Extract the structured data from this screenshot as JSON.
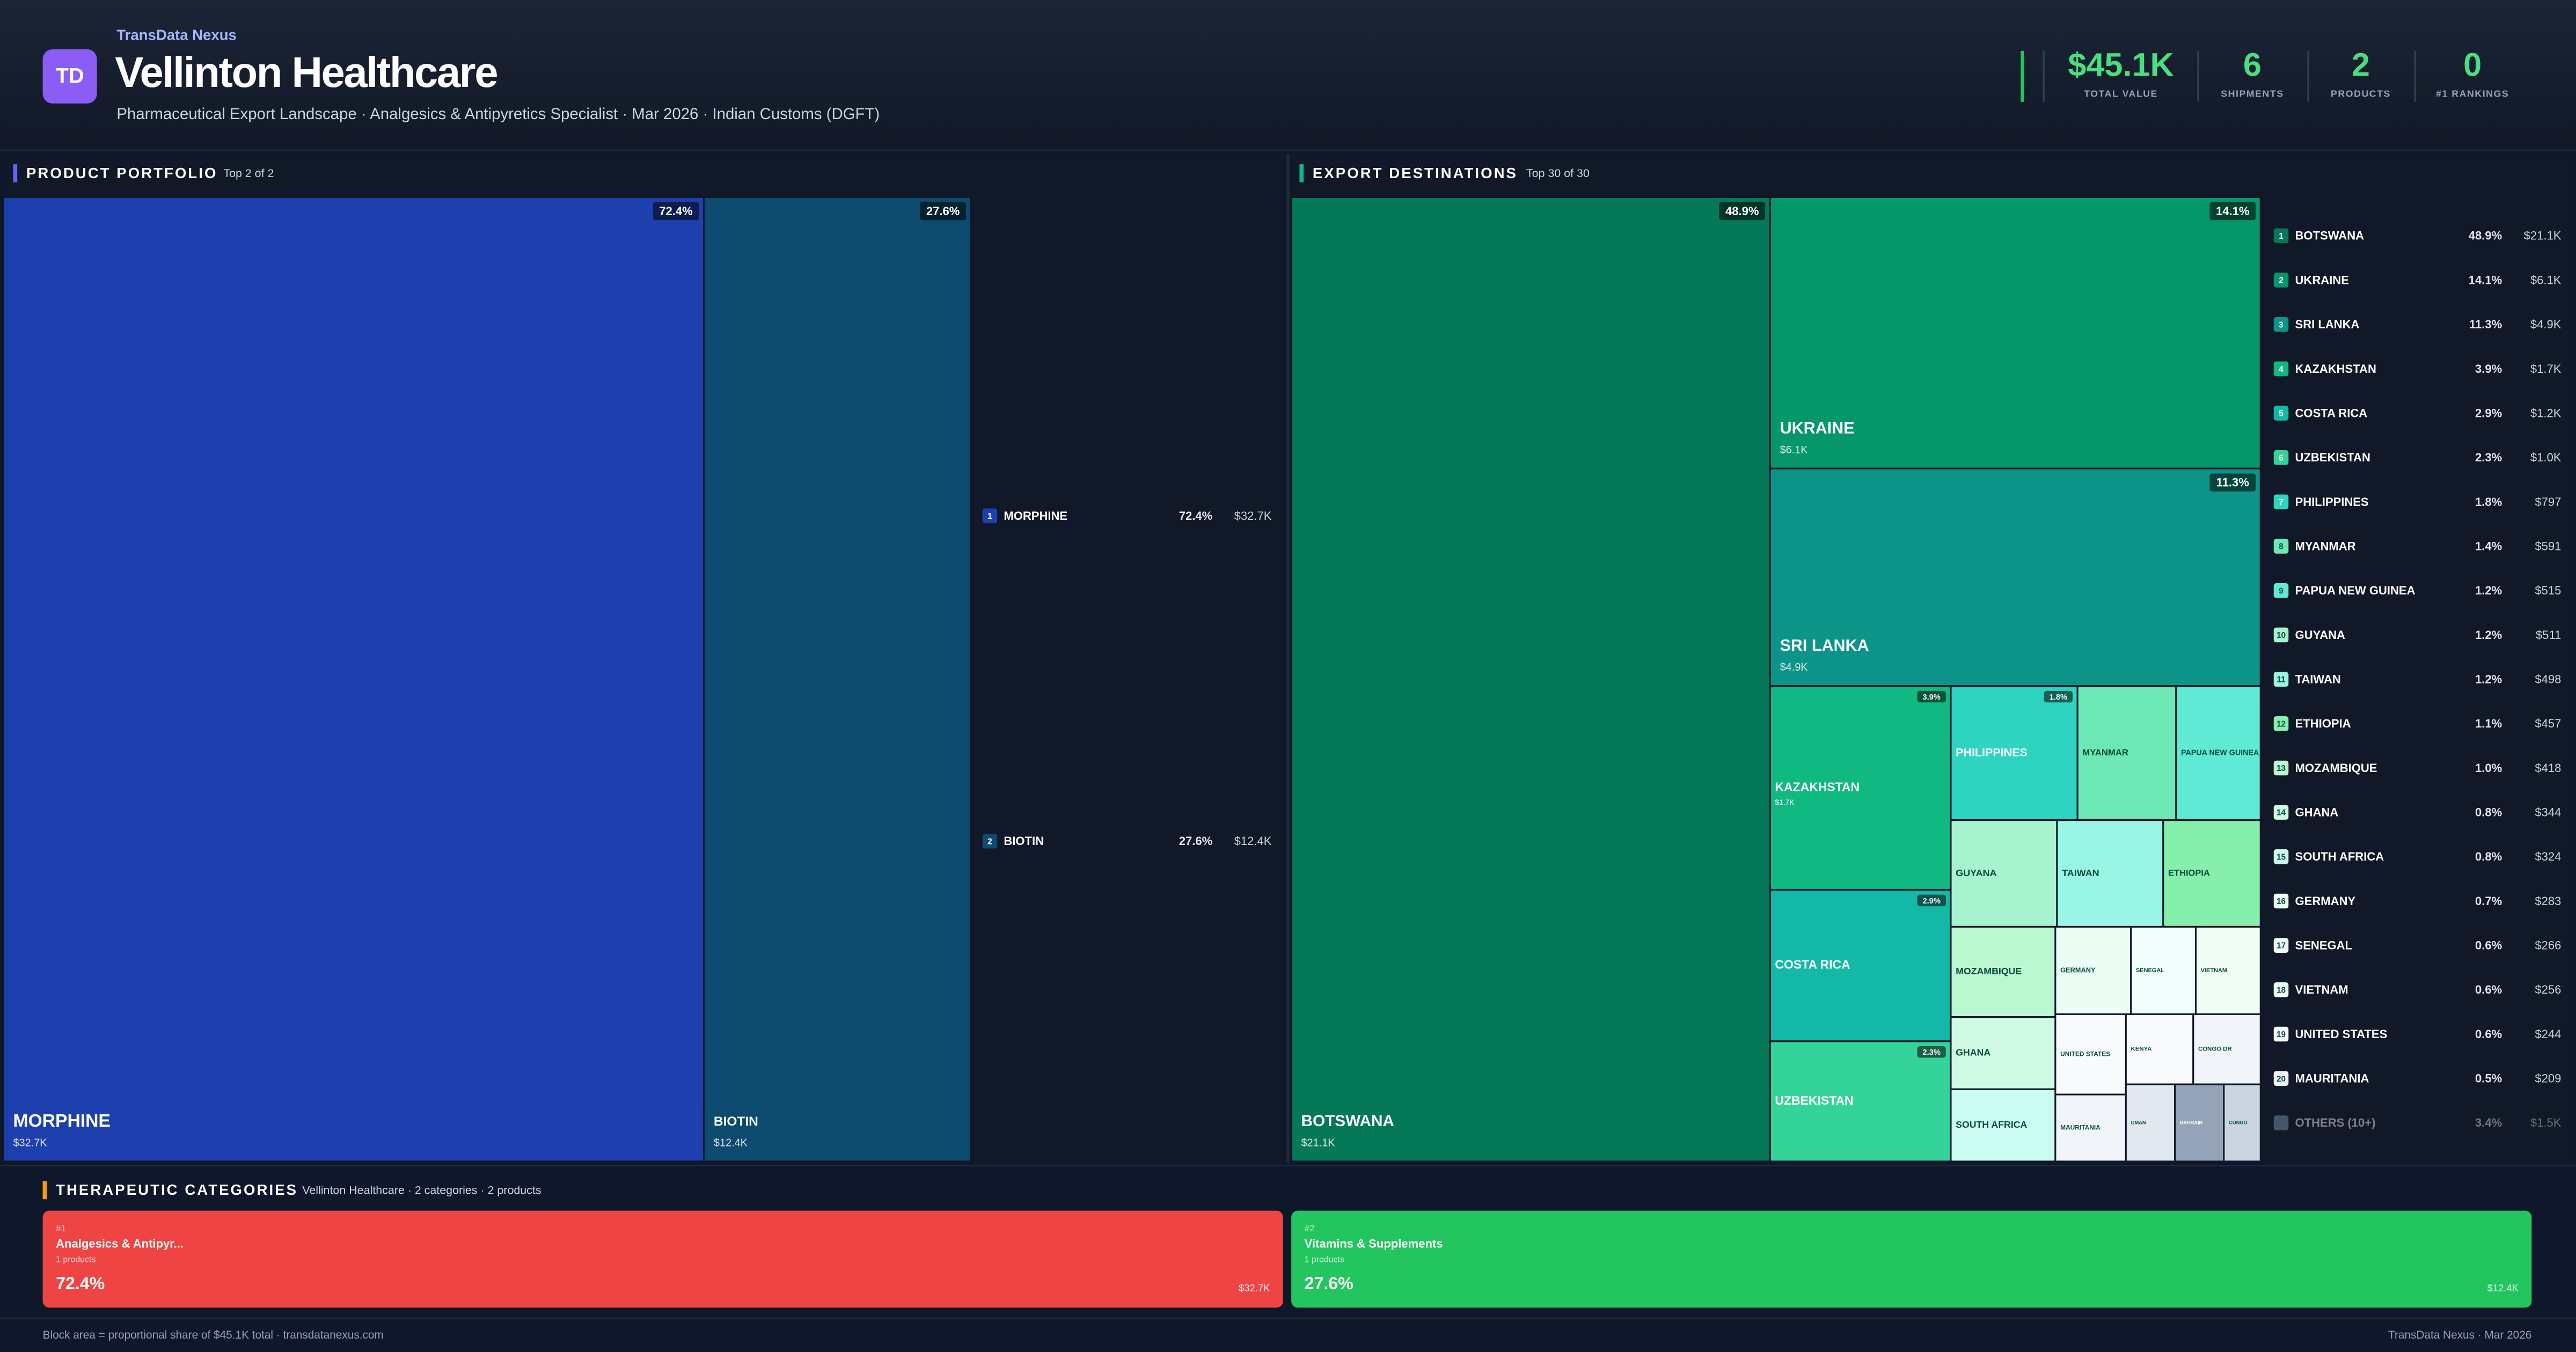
{
  "header": {
    "brand": "TransData Nexus",
    "logo": "TD",
    "title": "Vellinton Healthcare",
    "subtitle": "Pharmaceutical Export Landscape · Analgesics & Antipyretics Specialist · Mar 2026 · Indian Customs (DGFT)"
  },
  "kpis": [
    {
      "value": "$45.1K",
      "label": "TOTAL VALUE"
    },
    {
      "value": 6,
      "label": "SHIPMENTS"
    },
    {
      "value": 2,
      "label": "PRODUCTS"
    },
    {
      "value": 0,
      "label": "#1 RANKINGS"
    }
  ],
  "portfolio": {
    "title": "PRODUCT PORTFOLIO",
    "subtitle": "Top 2 of 2",
    "items": [
      {
        "rank": 1,
        "name": "MORPHINE",
        "share": 72.4,
        "share_label": "72.4%",
        "value_label": "$32.7K",
        "color": "#1e40af"
      },
      {
        "rank": 2,
        "name": "BIOTIN",
        "share": 27.6,
        "share_label": "27.6%",
        "value_label": "$12.4K",
        "color": "#0c4a6e"
      }
    ]
  },
  "destinations": {
    "title": "EXPORT DESTINATIONS",
    "subtitle": "Top 30 of 30",
    "items": [
      {
        "rank": 1,
        "name": "BOTSWANA",
        "share": 48.9,
        "share_label": "48.9%",
        "value_label": "$21.1K",
        "color": "#047857"
      },
      {
        "rank": 2,
        "name": "UKRAINE",
        "share": 14.1,
        "share_label": "14.1%",
        "value_label": "$6.1K",
        "color": "#059669"
      },
      {
        "rank": 3,
        "name": "SRI LANKA",
        "share": 11.3,
        "share_label": "11.3%",
        "value_label": "$4.9K",
        "color": "#0d9488"
      },
      {
        "rank": 4,
        "name": "KAZAKHSTAN",
        "share": 3.9,
        "share_label": "3.9%",
        "value_label": "$1.7K",
        "color": "#10b981"
      },
      {
        "rank": 5,
        "name": "COSTA RICA",
        "share": 2.9,
        "share_label": "2.9%",
        "value_label": "$1.2K",
        "color": "#14b8a6"
      },
      {
        "rank": 6,
        "name": "UZBEKISTAN",
        "share": 2.3,
        "share_label": "2.3%",
        "value_label": "$1.0K",
        "color": "#34d399"
      },
      {
        "rank": 7,
        "name": "PHILIPPINES",
        "share": 1.8,
        "share_label": "1.8%",
        "value_label": "$797",
        "color": "#2dd4bf"
      },
      {
        "rank": 8,
        "name": "MYANMAR",
        "share": 1.4,
        "share_label": "1.4%",
        "value_label": "$591",
        "color": "#6ee7b7"
      },
      {
        "rank": 9,
        "name": "PAPUA NEW GUINEA",
        "share": 1.2,
        "share_label": "1.2%",
        "value_label": "$515",
        "color": "#5eead4"
      },
      {
        "rank": 10,
        "name": "GUYANA",
        "share": 1.2,
        "share_label": "1.2%",
        "value_label": "$511",
        "color": "#a7f3d0"
      },
      {
        "rank": 11,
        "name": "TAIWAN",
        "share": 1.2,
        "share_label": "1.2%",
        "value_label": "$498",
        "color": "#99f6e4"
      },
      {
        "rank": 12,
        "name": "ETHIOPIA",
        "share": 1.1,
        "share_label": "1.1%",
        "value_label": "$457",
        "color": "#86efac"
      },
      {
        "rank": 13,
        "name": "MOZAMBIQUE",
        "share": 1.0,
        "share_label": "1.0%",
        "value_label": "$418",
        "color": "#bbf7d0"
      },
      {
        "rank": 14,
        "name": "GHANA",
        "share": 0.8,
        "share_label": "0.8%",
        "value_label": "$344",
        "color": "#d1fae5"
      },
      {
        "rank": 15,
        "name": "SOUTH AFRICA",
        "share": 0.8,
        "share_label": "0.8%",
        "value_label": "$324",
        "color": "#ccfbf1"
      },
      {
        "rank": 16,
        "name": "GERMANY",
        "share": 0.7,
        "share_label": "0.7%",
        "value_label": "$283",
        "color": "#ecfdf5"
      },
      {
        "rank": 17,
        "name": "SENEGAL",
        "share": 0.6,
        "share_label": "0.6%",
        "value_label": "$266",
        "color": "#f0fdfa"
      },
      {
        "rank": 18,
        "name": "VIETNAM",
        "share": 0.6,
        "share_label": "0.6%",
        "value_label": "$256",
        "color": "#f0fdf4"
      },
      {
        "rank": 19,
        "name": "UNITED STATES",
        "share": 0.6,
        "share_label": "0.6%",
        "value_label": "$244",
        "color": "#f8fafc"
      },
      {
        "rank": 20,
        "name": "MAURITANIA",
        "share": 0.5,
        "share_label": "0.5%",
        "value_label": "$209",
        "color": "#f1f5f9"
      },
      {
        "name": "KENYA",
        "share": 0.5,
        "color": "#f8fafc"
      },
      {
        "name": "CONGO DR",
        "share": 0.5,
        "color": "#f1f5f9"
      },
      {
        "name": "OMAN",
        "share": 0.4,
        "color": "#e2e8f0"
      },
      {
        "name": "BAHRAIN",
        "share": 0.4,
        "color": "#94a3b8"
      },
      {
        "name": "CONGO",
        "share": 0.3,
        "color": "#cbd5e1"
      }
    ],
    "others": {
      "name": "OTHERS (10+)",
      "share": 3.4,
      "share_label": "3.4%",
      "value_label": "$1.5K",
      "color": "#475569"
    }
  },
  "categories": {
    "title": "THERAPEUTIC CATEGORIES",
    "subtitle": "Vellinton Healthcare · 2 categories · 2 products",
    "items": [
      {
        "rank_label": "#1",
        "name": "Analgesics & Antipyr...",
        "count_label": "1 products",
        "share": 72.4,
        "share_label": "72.4%",
        "value_label": "$32.7K",
        "color": "#ef4444"
      },
      {
        "rank_label": "#2",
        "name": "Vitamins & Supplements",
        "count_label": "1 products",
        "share": 27.6,
        "share_label": "27.6%",
        "value_label": "$12.4K",
        "color": "#22c55e"
      }
    ]
  },
  "footer": {
    "left": "Block area = proportional share of $45.1K total · transdatanexus.com",
    "right": "TransData Nexus · Mar 2026"
  }
}
